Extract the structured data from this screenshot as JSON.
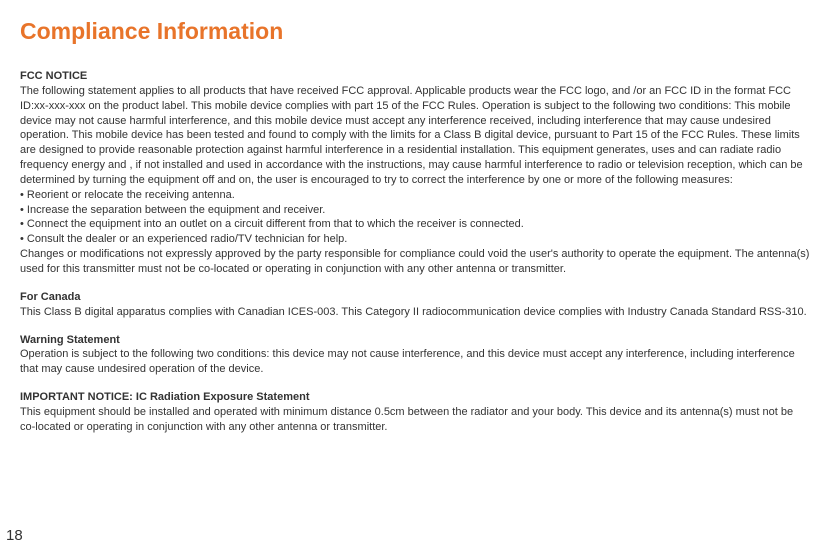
{
  "title": "Compliance Information",
  "title_color": "#e8742a",
  "title_fontsize": 23,
  "body_fontsize": 11,
  "body_color": "#333333",
  "background_color": "#ffffff",
  "page_number": "18",
  "sections": {
    "fcc": {
      "heading": "FCC NOTICE",
      "para1": "The following statement applies to all products that have received FCC approval.  Applicable products wear the FCC logo, and /or an FCC ID in the format FCC ID:xx-xxx-xxx on the product label. This mobile device complies with part 15 of the FCC Rules.  Operation is subject to the following two conditions: This mobile device may not cause harmful interference, and this mobile device must accept any interference received, including interference that may cause undesired operation.  This mobile device has been tested and found to comply with the limits for a Class B digital device, pursuant to Part 15 of the FCC Rules.  These limits are designed to provide reasonable protection against harmful interference in a residential installation.  This equipment generates, uses and can radiate radio frequency energy and , if not installed and used in accordance with the instructions, may cause harmful interference to radio or television reception, which can be determined by turning the equipment off and on, the user is encouraged to try to correct the interference by one or more of the following measures:",
      "bullets": [
        "• Reorient or relocate the receiving antenna.",
        "• Increase the separation between the equipment and receiver.",
        "• Connect the equipment into an outlet on a circuit different from that to which the receiver is connected.",
        "• Consult the dealer or an experienced radio/TV technician for help."
      ],
      "para2": "Changes or modifications not expressly approved by the party responsible for compliance could void the user's authority to operate the equipment. The antenna(s) used for this transmitter must not be co-located or operating in conjunction with any other antenna or transmitter."
    },
    "canada": {
      "heading": "For Canada",
      "para": "This Class B digital apparatus complies with Canadian ICES-003.  This Category II radiocommunication device complies with Industry Canada Standard RSS-310."
    },
    "warning": {
      "heading": "Warning Statement",
      "para": "Operation is subject to the following two conditions: this device may not cause interference, and this device must accept any interference, including interference that may cause undesired operation of the device."
    },
    "ic": {
      "heading": "IMPORTANT NOTICE: IC Radiation Exposure Statement",
      "para": "This equipment should be installed and operated with minimum distance 0.5cm between the radiator and your body.  This device and its antenna(s) must not be co-located or operating in conjunction with any other antenna or transmitter."
    }
  }
}
